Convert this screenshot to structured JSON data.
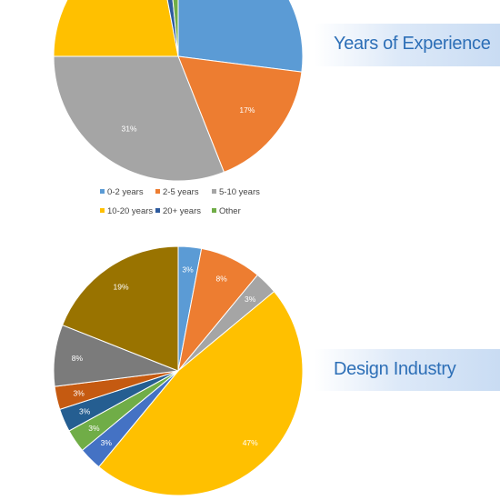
{
  "banners": {
    "experience": "Years of Experience",
    "industry": "Design Industry"
  },
  "chart_data": [
    {
      "type": "pie",
      "title": "Years of Experience",
      "categories": [
        "0-2 years",
        "2-5 years",
        "5-10 years",
        "10-20 years",
        "20+ years",
        "Other"
      ],
      "values": [
        27,
        17,
        31,
        22,
        1.5,
        1.5
      ],
      "data_labels": [
        "",
        "17%",
        "31%",
        "",
        "",
        ""
      ],
      "colors": [
        "#5b9bd5",
        "#ed7d31",
        "#a5a5a5",
        "#ffc000",
        "#2e5b9e",
        "#70ad47"
      ],
      "legend": "bottom"
    },
    {
      "type": "pie",
      "title": "Design Industry",
      "categories": [
        "",
        "",
        "",
        "",
        "",
        "",
        "",
        "",
        "",
        "",
        ""
      ],
      "values": [
        3,
        8,
        3,
        47,
        3,
        3,
        3,
        3,
        8,
        19,
        0
      ],
      "data_labels": [
        "3%",
        "8%",
        "3%",
        "47%",
        "3%",
        "3%",
        "3%",
        "3%",
        "8%",
        "19%",
        ""
      ],
      "colors": [
        "#5b9bd5",
        "#ed7d31",
        "#a5a5a5",
        "#ffc000",
        "#4472c4",
        "#70ad47",
        "#255e91",
        "#c55a11",
        "#7b7b7b",
        "#997300",
        "#ffffff"
      ],
      "legend": "none"
    }
  ]
}
